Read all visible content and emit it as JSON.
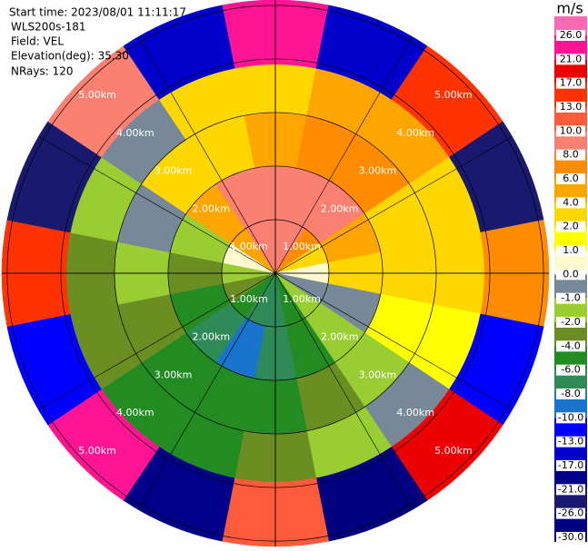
{
  "chart_data": {
    "type": "ppi",
    "info": [
      "Start time: 2023/08/01 11:11:17",
      "WLS200s-181",
      "Field: VEL",
      "Elevation(deg): 35.30",
      "NRays: 120"
    ],
    "colorbar_title": "m/s",
    "levels": [
      {
        "value": 26,
        "label": "26.0"
      },
      {
        "value": 21,
        "label": "21.0"
      },
      {
        "value": 17,
        "label": "17.0"
      },
      {
        "value": 13,
        "label": "13.0"
      },
      {
        "value": 10,
        "label": "10.0"
      },
      {
        "value": 8,
        "label": "8.0"
      },
      {
        "value": 6,
        "label": "6.0"
      },
      {
        "value": 4,
        "label": "4.0"
      },
      {
        "value": 2,
        "label": "2.0"
      },
      {
        "value": 1,
        "label": "1.0"
      },
      {
        "value": 0,
        "label": "0.0"
      },
      {
        "value": -1,
        "label": "-1.0"
      },
      {
        "value": -2,
        "label": "-2.0"
      },
      {
        "value": -4,
        "label": "-4.0"
      },
      {
        "value": -6,
        "label": "-6.0"
      },
      {
        "value": -8,
        "label": "-8.0"
      },
      {
        "value": -10,
        "label": "-10.0"
      },
      {
        "value": -13,
        "label": "-13.0"
      },
      {
        "value": -17,
        "label": "-17.0"
      },
      {
        "value": -21,
        "label": "-21.0"
      },
      {
        "value": -26,
        "label": "-26.0"
      },
      {
        "value": -30,
        "label": "-30.0"
      }
    ],
    "colors": [
      "#ff69b4",
      "#ff1493",
      "#ee0000",
      "#ff3300",
      "#ff5a3c",
      "#fa8072",
      "#ff8c00",
      "#ffa500",
      "#ffd700",
      "#ffff00",
      "#fffacd",
      "#778899",
      "#9acd32",
      "#6b8e23",
      "#228b22",
      "#2e8b57",
      "#1874cd",
      "#0000ff",
      "#0000cd",
      "#00008b",
      "#191970",
      "#000080"
    ],
    "rlim": [
      0,
      5.1
    ],
    "rticks": [
      {
        "value": 1,
        "label": "1.00km"
      },
      {
        "value": 2,
        "label": "2.00km"
      },
      {
        "value": 3,
        "label": "3.00km"
      },
      {
        "value": 4,
        "label": "4.00km"
      },
      {
        "value": 5,
        "label": "5.00km"
      }
    ],
    "range_edges": [
      0,
      1,
      2,
      3,
      3.9,
      5.1
    ],
    "azimuths": [
      0,
      22.5,
      45,
      67.5,
      90,
      112.5,
      135,
      157.5,
      180,
      202.5,
      225,
      247.5,
      270,
      292.5,
      315,
      337.5
    ],
    "values": [
      [
        9,
        9,
        5,
        3,
        24
      ],
      [
        9,
        9,
        7,
        5,
        -15
      ],
      [
        7,
        9,
        7,
        5,
        15
      ],
      [
        3,
        5,
        3,
        3,
        -24
      ],
      [
        0.5,
        3,
        3,
        3,
        7
      ],
      [
        -0.5,
        -0.5,
        1.5,
        1.5,
        -11
      ],
      [
        -1.5,
        -1.5,
        -1.5,
        -0.5,
        19
      ],
      [
        -5,
        -5,
        -3,
        -1.5,
        -28
      ],
      [
        -7,
        -7,
        -5,
        -3,
        11
      ],
      [
        -7,
        -9,
        -5,
        -5,
        -19
      ],
      [
        -5,
        -7,
        -5,
        -5,
        23
      ],
      [
        -3,
        -5,
        -3,
        -3,
        -12
      ],
      [
        -1.5,
        -3,
        -1.5,
        -3,
        15
      ],
      [
        0.5,
        -1.5,
        -0.5,
        -1.5,
        -22
      ],
      [
        5,
        5,
        3,
        -0.5,
        9
      ],
      [
        9,
        9,
        3,
        3,
        -14
      ]
    ]
  }
}
